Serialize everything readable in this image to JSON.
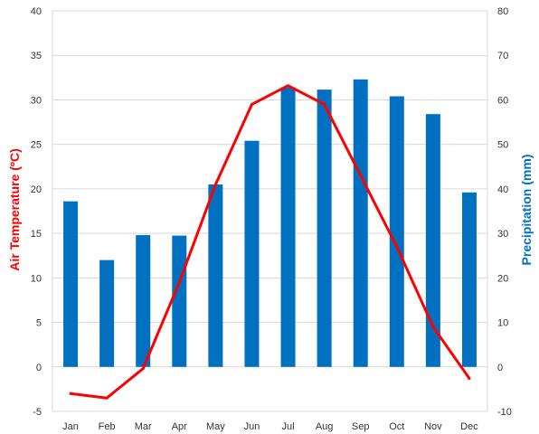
{
  "chart_data": {
    "type": "bar",
    "categories": [
      "Jan",
      "Feb",
      "Mar",
      "Apr",
      "May",
      "Jun",
      "Jul",
      "Aug",
      "Sep",
      "Oct",
      "Nov",
      "Dec"
    ],
    "series": [
      {
        "name": "Precipitation (mm)",
        "type": "bar",
        "axis": "right",
        "color": "#0070c0",
        "values": [
          37.2,
          24.0,
          29.6,
          29.5,
          41.0,
          50.8,
          62.8,
          62.3,
          64.6,
          60.8,
          56.8,
          39.2
        ]
      },
      {
        "name": "Air Temperature (ºC)",
        "type": "line",
        "axis": "left",
        "color": "#ff0000",
        "values": [
          -3.0,
          -3.5,
          -0.2,
          9.5,
          20.5,
          29.5,
          31.6,
          29.5,
          21.5,
          13.5,
          4.5,
          -1.3
        ]
      }
    ],
    "ylabel_left": "Air Temperature (ºC)",
    "ylabel_right": "Precipitation (mm)",
    "ylim_left": [
      -5,
      40
    ],
    "ylim_right": [
      -10,
      80
    ],
    "yticks_left": [
      "40",
      "35",
      "30",
      "25",
      "20",
      "15",
      "10",
      "5",
      "0",
      "-5"
    ],
    "yticks_right": [
      "80",
      "70",
      "60",
      "50",
      "40",
      "30",
      "20",
      "10",
      "0",
      "-10"
    ],
    "grid": true,
    "legend": "none"
  }
}
